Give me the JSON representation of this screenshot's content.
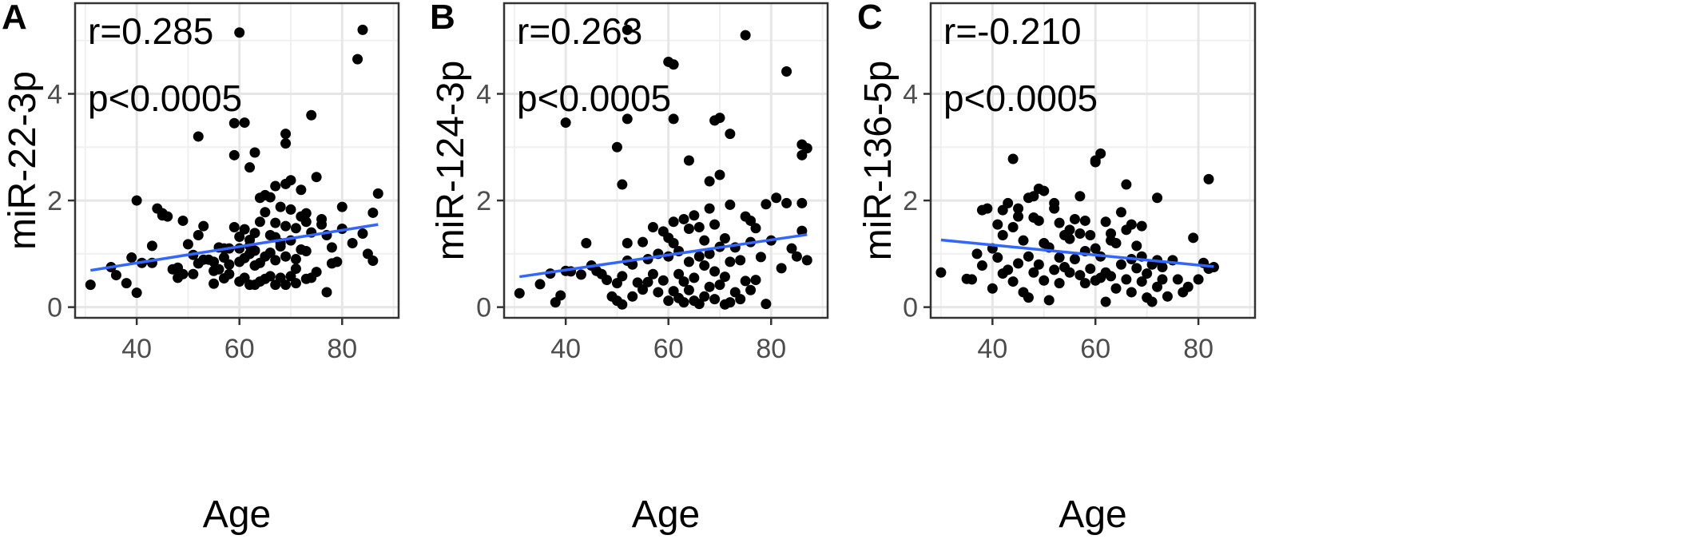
{
  "chart_data": [
    {
      "type": "scatter",
      "panel_label": "A",
      "xlabel": "Age",
      "ylabel": "miR-22-3p",
      "annotations": [
        "r=0.285",
        "p<0.0005"
      ],
      "xlim": [
        28,
        91
      ],
      "ylim": [
        -0.2,
        5.7
      ],
      "xticks": [
        40,
        60,
        80
      ],
      "yticks": [
        0,
        2,
        4
      ],
      "grid": true,
      "point_color": "#000000",
      "fit_color": "#3366FF",
      "fit_line": {
        "x": [
          31,
          87
        ],
        "y": [
          0.69,
          1.55
        ]
      },
      "x": [
        31,
        35,
        36,
        38,
        39,
        40,
        40,
        41,
        43,
        43,
        44,
        45,
        45,
        46,
        47,
        48,
        49,
        49,
        50,
        51,
        51,
        52,
        52,
        53,
        53,
        54,
        55,
        55,
        56,
        56,
        57,
        57,
        58,
        58,
        59,
        59,
        60,
        60,
        60,
        60,
        61,
        61,
        61,
        62,
        62,
        62,
        62,
        63,
        63,
        63,
        63,
        64,
        64,
        64,
        65,
        65,
        65,
        66,
        66,
        66,
        67,
        67,
        67,
        67,
        68,
        68,
        68,
        69,
        69,
        69,
        69,
        70,
        70,
        70,
        71,
        71,
        71,
        72,
        72,
        73,
        73,
        73,
        74,
        74,
        75,
        75,
        76,
        77,
        77,
        78,
        79,
        80,
        82,
        84,
        85,
        86,
        86,
        87,
        52,
        59,
        60,
        63,
        69,
        69,
        74,
        61,
        83,
        84,
        48,
        55,
        57,
        62,
        66,
        70,
        72,
        76,
        78,
        80,
        65,
        68,
        71,
        73,
        58,
        64,
        67
      ],
      "y": [
        0.42,
        0.75,
        0.6,
        0.45,
        0.93,
        2.0,
        0.27,
        0.83,
        1.15,
        0.83,
        1.85,
        1.72,
        1.76,
        1.7,
        0.71,
        0.55,
        0.62,
        1.62,
        1.18,
        0.98,
        0.62,
        0.82,
        1.35,
        0.89,
        1.52,
        0.89,
        0.85,
        0.44,
        0.71,
        1.12,
        0.93,
        0.54,
        1.1,
        0.62,
        2.85,
        1.5,
        0.48,
        0.85,
        1.1,
        1.32,
        0.55,
        0.92,
        1.46,
        0.42,
        1.0,
        1.26,
        2.62,
        0.42,
        0.78,
        1.06,
        1.39,
        0.48,
        0.83,
        1.6,
        0.53,
        0.95,
        1.78,
        0.58,
        1.02,
        2.06,
        0.42,
        0.88,
        1.31,
        2.27,
        0.55,
        1.14,
        1.88,
        0.42,
        0.95,
        1.52,
        2.31,
        0.58,
        1.25,
        1.83,
        0.45,
        0.9,
        1.48,
        1.08,
        2.2,
        0.53,
        1.05,
        1.76,
        0.55,
        1.4,
        0.66,
        2.44,
        1.65,
        0.28,
        1.35,
        0.82,
        0.85,
        1.47,
        1.2,
        1.38,
        1.0,
        0.87,
        1.77,
        2.13,
        3.2,
        3.45,
        5.15,
        2.9,
        3.07,
        3.25,
        3.6,
        3.46,
        4.65,
        5.2,
        0.74,
        0.68,
        1.1,
        1.15,
        1.35,
        2.38,
        1.7,
        1.55,
        1.12,
        1.88,
        2.1,
        1.2,
        0.72,
        1.6,
        0.8,
        2.05,
        1.58
      ]
    },
    {
      "type": "scatter",
      "panel_label": "B",
      "xlabel": "Age",
      "ylabel": "miR-124-3p",
      "annotations": [
        "r=0.263",
        "p<0.0005"
      ],
      "xlim": [
        28,
        91
      ],
      "ylim": [
        -0.2,
        5.7
      ],
      "xticks": [
        40,
        60,
        80
      ],
      "yticks": [
        0,
        2,
        4
      ],
      "grid": true,
      "point_color": "#000000",
      "fit_color": "#3366FF",
      "fit_line": {
        "x": [
          31,
          87
        ],
        "y": [
          0.57,
          1.36
        ]
      },
      "x": [
        31,
        35,
        37,
        38,
        39,
        40,
        41,
        43,
        44,
        45,
        46,
        47,
        48,
        49,
        50,
        50,
        51,
        51,
        52,
        52,
        53,
        53,
        54,
        55,
        55,
        56,
        56,
        57,
        57,
        58,
        58,
        59,
        59,
        60,
        60,
        60,
        61,
        61,
        61,
        62,
        62,
        62,
        63,
        63,
        63,
        64,
        64,
        64,
        65,
        65,
        65,
        66,
        66,
        66,
        67,
        67,
        67,
        68,
        68,
        68,
        69,
        69,
        69,
        70,
        70,
        70,
        71,
        71,
        71,
        72,
        72,
        72,
        73,
        73,
        74,
        74,
        75,
        75,
        76,
        76,
        77,
        77,
        78,
        79,
        80,
        81,
        82,
        83,
        84,
        85,
        86,
        86,
        87,
        40,
        50,
        52,
        51,
        61,
        69,
        70,
        72,
        60,
        61,
        52,
        75,
        83,
        86,
        86,
        87,
        64,
        68,
        76,
        79
      ],
      "y": [
        0.26,
        0.43,
        0.63,
        0.09,
        0.22,
        0.68,
        0.67,
        0.61,
        1.2,
        0.78,
        0.68,
        0.62,
        0.51,
        0.2,
        0.45,
        0.12,
        0.05,
        0.58,
        0.87,
        1.2,
        0.2,
        0.8,
        0.46,
        0.33,
        1.22,
        0.47,
        0.9,
        0.62,
        1.5,
        0.28,
        1.0,
        0.5,
        1.42,
        0.12,
        0.95,
        1.3,
        0.3,
        1.2,
        1.6,
        0.17,
        0.62,
        1.05,
        0.09,
        0.48,
        1.65,
        0.32,
        0.85,
        1.47,
        0.12,
        0.55,
        1.72,
        0.06,
        0.95,
        1.5,
        0.2,
        0.78,
        1.25,
        0.38,
        1.0,
        1.85,
        0.15,
        0.67,
        1.55,
        0.42,
        1.13,
        2.48,
        0.05,
        0.57,
        1.29,
        0.09,
        0.85,
        1.92,
        0.28,
        1.12,
        0.15,
        0.88,
        0.49,
        1.7,
        0.32,
        1.22,
        0.51,
        1.48,
        0.94,
        0.06,
        1.25,
        2.05,
        0.73,
        1.95,
        1.1,
        0.95,
        1.43,
        2.85,
        2.98,
        3.46,
        3.0,
        3.53,
        2.3,
        3.53,
        3.5,
        3.55,
        3.25,
        4.6,
        4.55,
        5.2,
        5.1,
        4.42,
        3.05,
        1.95,
        0.88,
        2.75,
        2.36,
        1.62,
        1.93
      ],
      "y_extra_note": ""
    },
    {
      "type": "scatter",
      "panel_label": "C",
      "xlabel": "Age",
      "ylabel": "miR-136-5p",
      "annotations": [
        "r=-0.210",
        "p<0.0005"
      ],
      "xlim": [
        28,
        91
      ],
      "ylim": [
        -0.2,
        5.7
      ],
      "xticks": [
        40,
        60,
        80
      ],
      "yticks": [
        0,
        2,
        4
      ],
      "grid": true,
      "point_color": "#000000",
      "fit_color": "#3366FF",
      "fit_line": {
        "x": [
          30,
          83
        ],
        "y": [
          1.26,
          0.76
        ]
      },
      "x": [
        30,
        35,
        36,
        37,
        38,
        39,
        40,
        40,
        41,
        41,
        42,
        42,
        43,
        43,
        44,
        44,
        45,
        45,
        46,
        46,
        47,
        47,
        48,
        48,
        49,
        49,
        50,
        50,
        51,
        51,
        52,
        52,
        53,
        53,
        54,
        54,
        55,
        55,
        56,
        56,
        57,
        57,
        58,
        58,
        59,
        59,
        60,
        60,
        61,
        61,
        62,
        62,
        63,
        63,
        64,
        64,
        65,
        65,
        66,
        66,
        67,
        67,
        68,
        68,
        69,
        69,
        70,
        70,
        71,
        71,
        72,
        72,
        73,
        73,
        74,
        75,
        76,
        77,
        78,
        79,
        80,
        81,
        82,
        83,
        44,
        60,
        61,
        60,
        82,
        48,
        49,
        50,
        52,
        57,
        66,
        72,
        38,
        45,
        47,
        53,
        58,
        63,
        69,
        42,
        55,
        62,
        67
      ],
      "y": [
        0.65,
        0.53,
        0.52,
        1.0,
        0.78,
        1.85,
        0.35,
        1.1,
        0.93,
        1.55,
        0.63,
        1.82,
        0.7,
        1.95,
        0.48,
        1.5,
        0.82,
        1.7,
        0.28,
        1.25,
        0.18,
        0.95,
        0.65,
        1.68,
        0.8,
        1.62,
        0.5,
        1.2,
        0.13,
        1.12,
        0.7,
        1.85,
        0.45,
        0.93,
        0.75,
        1.35,
        0.65,
        1.28,
        0.9,
        1.65,
        0.6,
        1.38,
        0.45,
        1.05,
        0.72,
        1.35,
        0.5,
        1.1,
        0.55,
        0.95,
        0.1,
        0.65,
        0.58,
        1.25,
        0.35,
        1.2,
        0.8,
        1.78,
        0.52,
        1.45,
        0.28,
        0.9,
        0.73,
        1.15,
        0.48,
        0.95,
        0.18,
        0.63,
        0.1,
        0.8,
        0.38,
        0.88,
        0.52,
        0.75,
        0.2,
        0.88,
        0.52,
        0.28,
        0.38,
        1.3,
        0.52,
        0.83,
        0.72,
        0.75,
        2.78,
        2.75,
        2.88,
        2.72,
        2.4,
        2.08,
        2.22,
        2.18,
        1.95,
        2.08,
        2.3,
        2.05,
        1.82,
        1.85,
        2.05,
        1.58,
        1.62,
        1.38,
        1.52,
        1.35,
        1.45,
        1.6,
        1.55
      ]
    }
  ]
}
